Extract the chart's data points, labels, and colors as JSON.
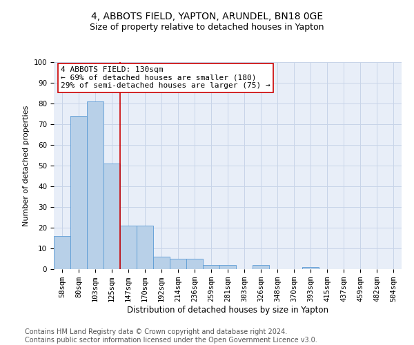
{
  "title1": "4, ABBOTS FIELD, YAPTON, ARUNDEL, BN18 0GE",
  "title2": "Size of property relative to detached houses in Yapton",
  "xlabel": "Distribution of detached houses by size in Yapton",
  "ylabel": "Number of detached properties",
  "categories": [
    "58sqm",
    "80sqm",
    "103sqm",
    "125sqm",
    "147sqm",
    "170sqm",
    "192sqm",
    "214sqm",
    "236sqm",
    "259sqm",
    "281sqm",
    "303sqm",
    "326sqm",
    "348sqm",
    "370sqm",
    "393sqm",
    "415sqm",
    "437sqm",
    "459sqm",
    "482sqm",
    "504sqm"
  ],
  "values": [
    16,
    74,
    81,
    51,
    21,
    21,
    6,
    5,
    5,
    2,
    2,
    0,
    2,
    0,
    0,
    1,
    0,
    0,
    0,
    0,
    0
  ],
  "bar_color": "#b8d0e8",
  "bar_edge_color": "#5b9bd5",
  "vline_x": 3.5,
  "vline_color": "#cc0000",
  "annotation_text": "4 ABBOTS FIELD: 130sqm\n← 69% of detached houses are smaller (180)\n29% of semi-detached houses are larger (75) →",
  "annotation_box_color": "#ffffff",
  "annotation_box_edge": "#cc0000",
  "ylim": [
    0,
    100
  ],
  "yticks": [
    0,
    10,
    20,
    30,
    40,
    50,
    60,
    70,
    80,
    90,
    100
  ],
  "grid_color": "#c8d4e8",
  "background_color": "#e8eef8",
  "footer_text": "Contains HM Land Registry data © Crown copyright and database right 2024.\nContains public sector information licensed under the Open Government Licence v3.0.",
  "title1_fontsize": 10,
  "title2_fontsize": 9,
  "xlabel_fontsize": 8.5,
  "ylabel_fontsize": 8,
  "tick_fontsize": 7.5,
  "annotation_fontsize": 8,
  "footer_fontsize": 7
}
